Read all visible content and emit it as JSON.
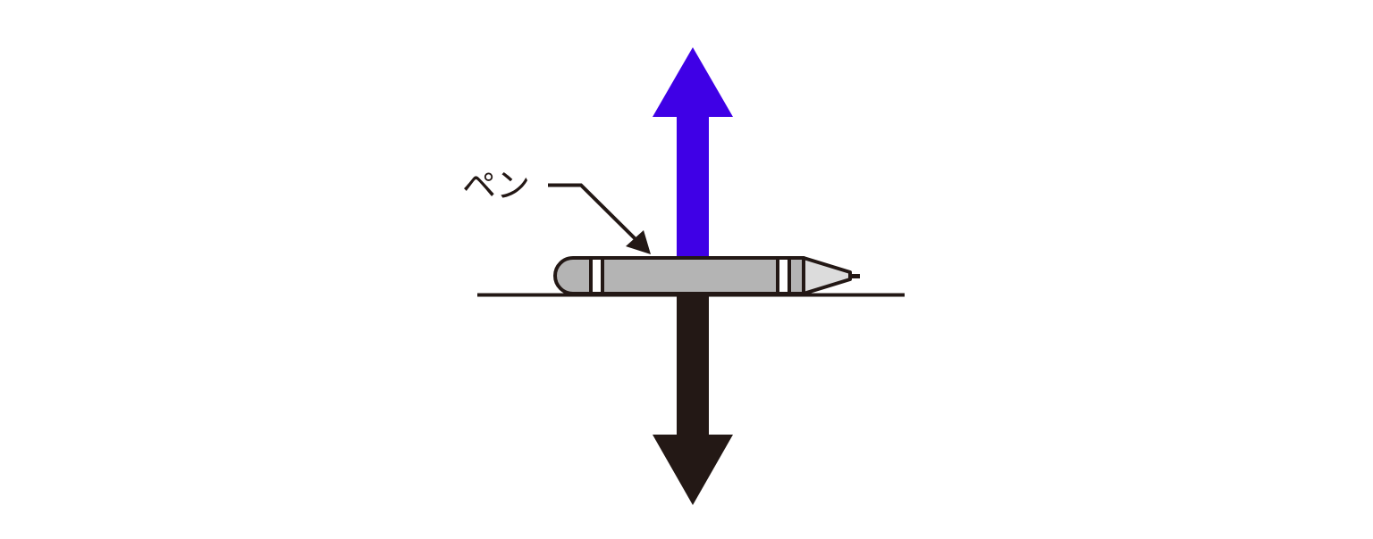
{
  "label": {
    "text": "ペン"
  },
  "colors": {
    "upward_arrow": "#3f00e6",
    "downward_arrow": "#231815",
    "outline": "#231815",
    "pen_body": "#b4b4b4",
    "pen_tip": "#dcdcdc",
    "background": "#ffffff"
  },
  "icons": {
    "pen": "pen-icon",
    "upward_force": "arrow-up-icon",
    "downward_force": "arrow-down-icon",
    "pointer": "leader-arrow-icon"
  }
}
